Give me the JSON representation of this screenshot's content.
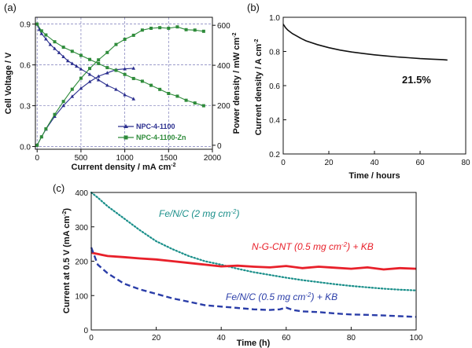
{
  "chart_data": [
    {
      "panel": "(a)",
      "type": "line",
      "xlabel": "Current density / mA cm",
      "xlabel_sup": "-2",
      "ylabel_left": "Cell Voltage / V",
      "ylabel_right": "Power density / mW cm",
      "ylabel_right_sup": "-2",
      "xlim": [
        -20,
        2000
      ],
      "ylim_left": [
        -0.02,
        0.95
      ],
      "ylim_right": [
        -20,
        640
      ],
      "x_ticks": [
        "0",
        "500",
        "1000",
        "1500",
        "2000"
      ],
      "y_left_ticks": [
        "0.0",
        "0.3",
        "0.6",
        "0.9"
      ],
      "y_right_ticks": [
        "0",
        "200",
        "400",
        "600"
      ],
      "grid": true,
      "legend": [
        "NPC-4-1100",
        "NPC-4-1100-Zn"
      ],
      "series": [
        {
          "name": "NPC-4-1100",
          "quantity": "voltage",
          "color": "#2b2f8f",
          "x": [
            0,
            25,
            50,
            100,
            150,
            200,
            250,
            300,
            350,
            400,
            450,
            500,
            600,
            700,
            800,
            900,
            1000,
            1100
          ],
          "y": [
            0.9,
            0.86,
            0.83,
            0.79,
            0.75,
            0.72,
            0.69,
            0.66,
            0.63,
            0.61,
            0.59,
            0.57,
            0.53,
            0.49,
            0.45,
            0.42,
            0.38,
            0.35
          ]
        },
        {
          "name": "NPC-4-1100",
          "quantity": "power",
          "color": "#2b2f8f",
          "x": [
            0,
            50,
            100,
            200,
            300,
            400,
            500,
            600,
            700,
            800,
            900,
            1000,
            1100
          ],
          "y": [
            0,
            42,
            80,
            144,
            198,
            244,
            285,
            318,
            345,
            362,
            378,
            382,
            385
          ]
        },
        {
          "name": "NPC-4-1100-Zn",
          "quantity": "voltage",
          "color": "#2e8b3a",
          "x": [
            0,
            50,
            100,
            200,
            300,
            400,
            500,
            600,
            700,
            800,
            900,
            1000,
            1100,
            1200,
            1300,
            1400,
            1500,
            1600,
            1700,
            1800,
            1900
          ],
          "y": [
            0.9,
            0.85,
            0.82,
            0.77,
            0.73,
            0.7,
            0.67,
            0.64,
            0.61,
            0.58,
            0.56,
            0.53,
            0.5,
            0.48,
            0.45,
            0.42,
            0.39,
            0.37,
            0.34,
            0.32,
            0.3
          ]
        },
        {
          "name": "NPC-4-1100-Zn",
          "quantity": "power",
          "color": "#2e8b3a",
          "x": [
            0,
            50,
            100,
            200,
            300,
            400,
            500,
            600,
            700,
            800,
            900,
            1000,
            1100,
            1200,
            1300,
            1400,
            1500,
            1600,
            1700,
            1800,
            1900
          ],
          "y": [
            0,
            42,
            82,
            154,
            219,
            280,
            335,
            384,
            427,
            464,
            504,
            530,
            550,
            576,
            585,
            588,
            585,
            592,
            578,
            576,
            570
          ]
        }
      ]
    },
    {
      "panel": "(b)",
      "type": "line",
      "xlabel": "Time / hours",
      "ylabel": "Current density / A cm",
      "ylabel_sup": "-2",
      "xlim": [
        0,
        80
      ],
      "ylim": [
        0.2,
        1.0
      ],
      "x_ticks": [
        "0",
        "20",
        "40",
        "60",
        "80"
      ],
      "y_ticks": [
        "0.2",
        "0.4",
        "0.6",
        "0.8",
        "1.0"
      ],
      "annotation": "21.5%",
      "series": [
        {
          "name": "current density",
          "color": "#111111",
          "x": [
            0,
            1,
            2,
            4,
            6,
            8,
            10,
            15,
            20,
            25,
            30,
            35,
            40,
            45,
            50,
            55,
            60,
            65,
            70,
            72
          ],
          "y": [
            0.96,
            0.94,
            0.925,
            0.905,
            0.89,
            0.875,
            0.862,
            0.84,
            0.822,
            0.808,
            0.797,
            0.788,
            0.78,
            0.774,
            0.768,
            0.763,
            0.758,
            0.755,
            0.752,
            0.75
          ]
        }
      ]
    },
    {
      "panel": "(c)",
      "type": "line",
      "xlabel": "Time (h)",
      "ylabel": "Current at 0.5 V (mA cm",
      "ylabel_sup": "-2",
      "ylabel_end": ")",
      "xlim": [
        0,
        100
      ],
      "ylim": [
        0,
        400
      ],
      "x_ticks": [
        "0",
        "20",
        "40",
        "60",
        "80",
        "100"
      ],
      "y_ticks": [
        "0",
        "100",
        "200",
        "300",
        "400"
      ],
      "series": [
        {
          "name": "Fe/N/C (2 mg cm-2)",
          "label_main": "Fe/N/C (2 mg cm",
          "label_sup": "-2",
          "label_end": ")",
          "style": "dotted",
          "color": "#1a8f8a",
          "x": [
            0,
            2,
            5,
            10,
            15,
            20,
            25,
            30,
            35,
            40,
            45,
            50,
            55,
            60,
            65,
            70,
            75,
            80,
            85,
            90,
            95,
            100
          ],
          "y": [
            400,
            385,
            360,
            325,
            290,
            258,
            235,
            215,
            200,
            190,
            178,
            168,
            160,
            152,
            145,
            139,
            133,
            128,
            124,
            120,
            117,
            115
          ]
        },
        {
          "name": "N-G-CNT (0.5 mg cm-2) + KB",
          "label_main": "N-G-CNT (0.5 mg cm",
          "label_sup": "-2",
          "label_end": ") + KB",
          "style": "solid",
          "color": "#e8202a",
          "x": [
            0,
            5,
            10,
            15,
            20,
            25,
            30,
            35,
            40,
            45,
            50,
            55,
            60,
            65,
            70,
            75,
            80,
            85,
            90,
            95,
            100
          ],
          "y": [
            225,
            215,
            212,
            208,
            205,
            200,
            195,
            190,
            185,
            187,
            184,
            182,
            186,
            180,
            184,
            181,
            178,
            182,
            176,
            180,
            178
          ]
        },
        {
          "name": "Fe/N/C (0.5 mg cm-2) + KB",
          "label_main": "Fe/N/C (0.5 mg cm",
          "label_sup": "-2",
          "label_end": ") + KB",
          "style": "dashed",
          "color": "#2a3da8",
          "x": [
            0,
            2,
            5,
            10,
            15,
            20,
            25,
            30,
            35,
            40,
            45,
            50,
            55,
            58,
            60,
            62,
            65,
            70,
            75,
            80,
            85,
            90,
            95,
            100
          ],
          "y": [
            240,
            190,
            165,
            135,
            118,
            105,
            92,
            82,
            72,
            68,
            64,
            60,
            58,
            60,
            65,
            58,
            54,
            52,
            48,
            45,
            44,
            42,
            40,
            38
          ]
        }
      ]
    }
  ]
}
